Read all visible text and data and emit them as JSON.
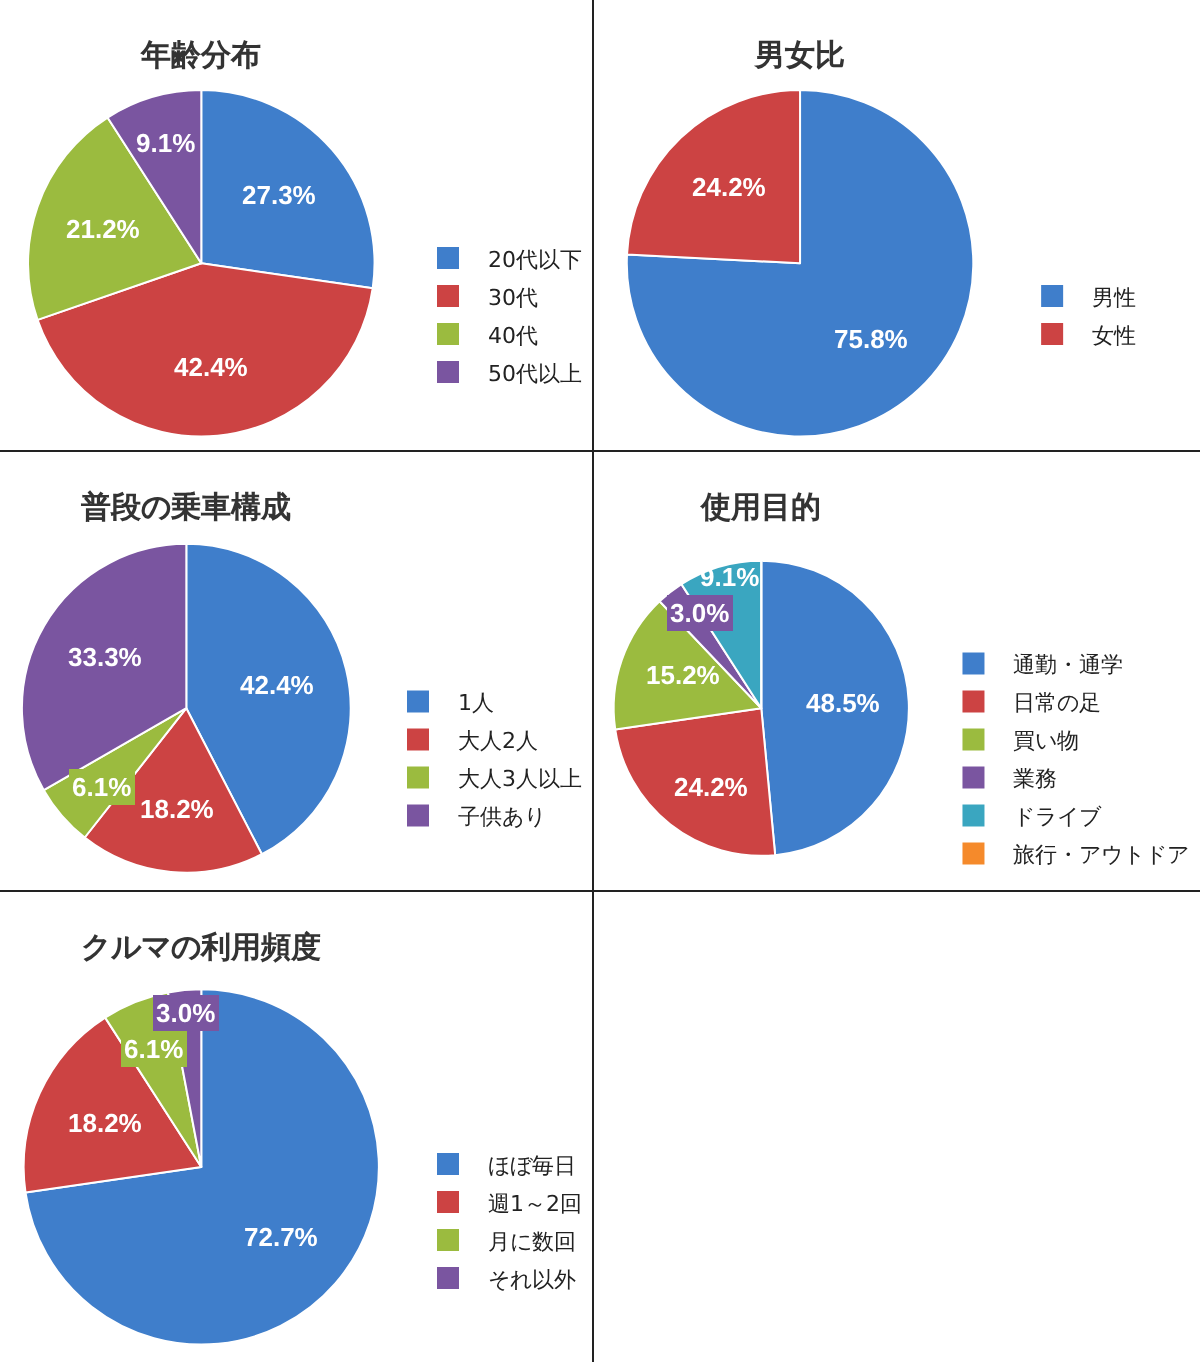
{
  "chart_data": [
    {
      "type": "pie",
      "title": "年齢分布",
      "categories": [
        "20代以下",
        "30代",
        "40代",
        "50代以上"
      ],
      "values": [
        27.3,
        42.4,
        21.2,
        9.1
      ],
      "colors": [
        "#3f7ecb",
        "#cc4343",
        "#9bbb3f",
        "#7a55a0"
      ],
      "value_labels": [
        "27.3%",
        "42.4%",
        "21.2%",
        "9.1%"
      ],
      "legend": "right"
    },
    {
      "type": "pie",
      "title": "男女比",
      "categories": [
        "男性",
        "女性"
      ],
      "values": [
        75.8,
        24.2
      ],
      "colors": [
        "#3f7ecb",
        "#cc4343"
      ],
      "value_labels": [
        "75.8%",
        "24.2%"
      ],
      "legend": "right"
    },
    {
      "type": "pie",
      "title": "普段の乗車構成",
      "categories": [
        "1人",
        "大人2人",
        "大人3人以上",
        "子供あり"
      ],
      "values": [
        42.4,
        18.2,
        6.1,
        33.3
      ],
      "colors": [
        "#3f7ecb",
        "#cc4343",
        "#9bbb3f",
        "#7a55a0"
      ],
      "value_labels": [
        "42.4%",
        "18.2%",
        "6.1%",
        "33.3%"
      ],
      "legend": "right"
    },
    {
      "type": "pie",
      "title": "使用目的",
      "categories": [
        "通勤・通学",
        "日常の足",
        "買い物",
        "業務",
        "ドライブ",
        "旅行・アウトドア"
      ],
      "values": [
        48.5,
        24.2,
        15.2,
        3.0,
        9.1,
        0
      ],
      "colors": [
        "#3f7ecb",
        "#cc4343",
        "#9bbb3f",
        "#7a55a0",
        "#3aa6c0",
        "#f58a2b"
      ],
      "value_labels": [
        "48.5%",
        "24.2%",
        "15.2%",
        "3.0%",
        "9.1%",
        null
      ],
      "legend": "right"
    },
    {
      "type": "pie",
      "title": "クルマの利用頻度",
      "categories": [
        "ほぼ毎日",
        "週1～2回",
        "月に数回",
        "それ以外"
      ],
      "values": [
        72.7,
        18.2,
        6.1,
        3.0
      ],
      "colors": [
        "#3f7ecb",
        "#cc4343",
        "#9bbb3f",
        "#7a55a0"
      ],
      "value_labels": [
        "72.7%",
        "18.2%",
        "6.1%",
        "3.0%"
      ],
      "legend": "right"
    }
  ]
}
